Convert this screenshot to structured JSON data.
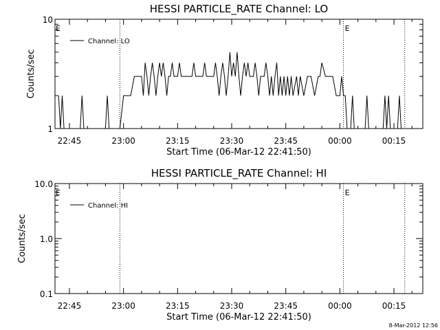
{
  "footer": {
    "timestamp": "8-Mar-2012 12:56"
  },
  "chart_data": [
    {
      "type": "line",
      "title": "HESSI PARTICLE_RATE Channel: LO",
      "xlabel": "Start Time (06-Mar-12 22:41:50)",
      "ylabel": "Counts/sec",
      "yscale": "log",
      "ylim": [
        1,
        10
      ],
      "xlim": [
        "22:41",
        "00:23"
      ],
      "y_ticks": [
        {
          "value": 1,
          "label": "1"
        },
        {
          "value": 10,
          "label": "10"
        }
      ],
      "x_ticks": [
        {
          "time": "22:45",
          "label": "22:45"
        },
        {
          "time": "23:00",
          "label": "23:00"
        },
        {
          "time": "23:15",
          "label": "23:15"
        },
        {
          "time": "23:30",
          "label": "23:30"
        },
        {
          "time": "23:45",
          "label": "23:45"
        },
        {
          "time": "00:00",
          "label": "00:00"
        },
        {
          "time": "00:15",
          "label": "00:15"
        }
      ],
      "legend": {
        "placement": "top-left",
        "entries": [
          "Channel: LO"
        ]
      },
      "vlines": [
        {
          "time": "22:59",
          "style": "dotted"
        },
        {
          "time": "00:01",
          "style": "dotted",
          "label": "E"
        },
        {
          "time": "00:18",
          "style": "dotted"
        }
      ],
      "edge_labels": [
        {
          "time": "22:41",
          "label": "E"
        }
      ],
      "series": [
        {
          "name": "Channel: LO",
          "segments": [
            {
              "times": [
                "22:42",
                "22:42.5",
                "22:43",
                "22:43.5"
              ],
              "values": [
                2,
                1,
                2,
                1
              ]
            },
            {
              "times": [
                "22:48",
                "22:48.5",
                "22:49"
              ],
              "values": [
                1,
                2,
                1
              ]
            },
            {
              "times": [
                "22:55",
                "22:55.5",
                "22:56"
              ],
              "values": [
                1,
                2,
                1
              ]
            },
            {
              "times": [
                "22:59",
                "23:00",
                "23:01",
                "23:02",
                "23:03",
                "23:04",
                "23:05",
                "23:05.5",
                "23:06",
                "23:06.5",
                "23:07",
                "23:07.5",
                "23:08",
                "23:08.5",
                "23:09",
                "23:09.5",
                "23:10",
                "23:10.5",
                "23:11",
                "23:11.5",
                "23:12",
                "23:12.5",
                "23:13",
                "23:13.5",
                "23:14",
                "23:14.5",
                "23:15",
                "23:15.5",
                "23:16",
                "23:17",
                "23:18",
                "23:19",
                "23:19.5",
                "23:20",
                "23:21",
                "23:22",
                "23:22.5",
                "23:23",
                "23:24",
                "23:25",
                "23:25.5",
                "23:26",
                "23:26.5",
                "23:27",
                "23:27.5",
                "23:28",
                "23:28.5",
                "23:29",
                "23:29.5",
                "23:30",
                "23:30.5",
                "23:31",
                "23:31.5",
                "23:32",
                "23:32.5",
                "23:33",
                "23:33.5",
                "23:34",
                "23:34.5",
                "23:35",
                "23:36",
                "23:36.5",
                "23:37",
                "23:37.5",
                "23:38",
                "23:39",
                "23:39.5",
                "23:40",
                "23:40.5",
                "23:41",
                "23:41.5",
                "23:42",
                "23:42.5",
                "23:43",
                "23:43.5",
                "23:44",
                "23:44.5",
                "23:45",
                "23:45.5",
                "23:46",
                "23:46.5",
                "23:47",
                "23:48",
                "23:48.5",
                "23:49",
                "23:50",
                "23:51",
                "23:52",
                "23:53",
                "23:54",
                "23:54.5",
                "23:55",
                "23:56",
                "23:57",
                "23:58",
                "23:59",
                "00:00",
                "00:00.5",
                "00:01",
                "00:01.5",
                "00:02"
              ],
              "values": [
                1,
                2,
                2,
                2,
                3,
                3,
                3,
                2,
                4,
                3,
                2,
                3,
                4,
                3,
                2,
                3,
                4,
                3,
                4,
                3,
                2,
                3,
                3,
                4,
                3,
                3,
                3,
                4,
                3,
                3,
                3,
                3,
                4,
                3,
                3,
                3,
                4,
                3,
                3,
                3,
                4,
                3,
                2,
                3,
                4,
                3,
                2,
                3,
                5,
                3,
                4,
                3,
                5,
                3,
                2,
                3,
                4,
                3,
                4,
                3,
                3,
                4,
                3,
                2,
                3,
                3,
                4,
                3,
                2,
                3,
                2,
                3,
                4,
                2,
                3,
                2,
                3,
                2,
                3,
                2,
                3,
                2,
                3,
                2,
                3,
                2,
                3,
                3,
                2,
                3,
                3,
                4,
                3,
                3,
                3,
                2,
                2,
                3,
                2,
                2,
                1
              ]
            },
            {
              "times": [
                "00:03",
                "00:03.5",
                "00:04"
              ],
              "values": [
                1,
                2,
                1
              ]
            },
            {
              "times": [
                "00:07",
                "00:07.5",
                "00:08"
              ],
              "values": [
                1,
                2,
                1
              ]
            },
            {
              "times": [
                "00:12",
                "00:12.5",
                "00:13",
                "00:13.5",
                "00:14"
              ],
              "values": [
                1,
                2,
                1,
                2,
                1
              ]
            },
            {
              "times": [
                "00:16",
                "00:16.5",
                "00:17"
              ],
              "values": [
                1,
                2,
                1
              ]
            }
          ]
        }
      ]
    },
    {
      "type": "line",
      "title": "HESSI PARTICLE_RATE Channel: HI",
      "xlabel": "Start Time (06-Mar-12 22:41:50)",
      "ylabel": "Counts/sec",
      "yscale": "log",
      "ylim": [
        0.1,
        10
      ],
      "xlim": [
        "22:41",
        "00:23"
      ],
      "y_ticks": [
        {
          "value": 0.1,
          "label": "0.1"
        },
        {
          "value": 1,
          "label": "1.0"
        },
        {
          "value": 10,
          "label": "10.0"
        }
      ],
      "x_ticks": [
        {
          "time": "22:45",
          "label": "22:45"
        },
        {
          "time": "23:00",
          "label": "23:00"
        },
        {
          "time": "23:15",
          "label": "23:15"
        },
        {
          "time": "23:30",
          "label": "23:30"
        },
        {
          "time": "23:45",
          "label": "23:45"
        },
        {
          "time": "00:00",
          "label": "00:00"
        },
        {
          "time": "00:15",
          "label": "00:15"
        }
      ],
      "legend": {
        "placement": "top-left",
        "entries": [
          "Channel: HI"
        ]
      },
      "vlines": [
        {
          "time": "22:59",
          "style": "dotted"
        },
        {
          "time": "00:01",
          "style": "dotted",
          "label": "E"
        },
        {
          "time": "00:18",
          "style": "dotted"
        }
      ],
      "edge_labels": [
        {
          "time": "22:41",
          "label": "E"
        }
      ],
      "series": [
        {
          "name": "Channel: HI",
          "segments": []
        }
      ]
    }
  ]
}
